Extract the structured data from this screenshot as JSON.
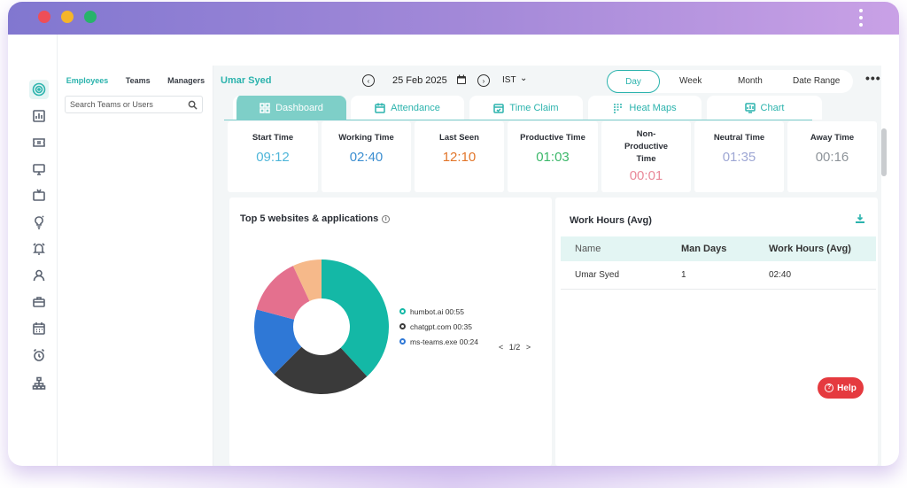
{
  "window": {
    "accent": "#2bb3ad",
    "titlebar_gradient": [
      "#8177d0",
      "#c9a1e6"
    ]
  },
  "rail": {
    "icons": [
      "target-icon",
      "bar-chart-icon",
      "ticket-icon",
      "monitor-icon",
      "tv-icon",
      "lightbulb-icon",
      "alarm-bell-icon",
      "user-icon",
      "briefcase-icon",
      "calendar-icon",
      "alarm-clock-icon",
      "org-chart-icon"
    ]
  },
  "user_panel": {
    "tabs": [
      "Employees",
      "Teams",
      "Managers"
    ],
    "search_placeholder": "Search Teams or Users"
  },
  "topbar": {
    "user_name": "Umar Syed",
    "prev_label": "‹",
    "next_label": "›",
    "date": "25 Feb 2025",
    "timezone": "IST",
    "periods": [
      "Day",
      "Week",
      "Month",
      "Date Range"
    ],
    "more_label": "•••"
  },
  "tabs": [
    {
      "label": "Dashboard",
      "icon": "dashboard-icon"
    },
    {
      "label": "Attendance",
      "icon": "calendar-icon"
    },
    {
      "label": "Time Claim",
      "icon": "calendar-check-icon"
    },
    {
      "label": "Heat Maps",
      "icon": "heatmap-icon"
    },
    {
      "label": "Chart",
      "icon": "chart-icon"
    }
  ],
  "metrics": [
    {
      "label": "Start Time",
      "value": "09:12",
      "color": "#4fb6d9"
    },
    {
      "label": "Working Time",
      "value": "02:40",
      "color": "#3d8fd1"
    },
    {
      "label": "Last Seen",
      "value": "12:10",
      "color": "#e2762a"
    },
    {
      "label": "Productive Time",
      "value": "01:03",
      "color": "#3cb86a"
    },
    {
      "label": "Non-Productive Time",
      "value": "00:01",
      "color": "#ea8a9a"
    },
    {
      "label": "Neutral Time",
      "value": "01:35",
      "color": "#9ea7d4"
    },
    {
      "label": "Away Time",
      "value": "00:16",
      "color": "#8e949a"
    }
  ],
  "top_apps": {
    "title": "Top 5 websites & applications",
    "info_label": "i",
    "legend": [
      {
        "name": "humbot.ai 00:55",
        "color": "#14b8a6"
      },
      {
        "name": "chatgpt.com 00:35",
        "color": "#3a3a3a"
      },
      {
        "name": "ms-teams.exe 00:24",
        "color": "#2f78d6"
      }
    ],
    "pager_prev": "<",
    "pager": "1/2",
    "pager_next": ">"
  },
  "chart_data": {
    "type": "pie",
    "title": "Top 5 websites & applications",
    "categories": [
      "humbot.ai",
      "chatgpt.com",
      "ms-teams.exe",
      "",
      ""
    ],
    "values": [
      55,
      35,
      24,
      20,
      10
    ],
    "colors": [
      "#14b8a6",
      "#3a3a3a",
      "#2f78d6",
      "#e4708e",
      "#f6b98a"
    ],
    "donut": true
  },
  "work_hours": {
    "title": "Work Hours (Avg)",
    "columns": [
      "Name",
      "Man Days",
      "Work Hours (Avg)"
    ],
    "rows": [
      [
        "Umar Syed",
        "1",
        "02:40"
      ]
    ]
  },
  "help_label": "Help"
}
